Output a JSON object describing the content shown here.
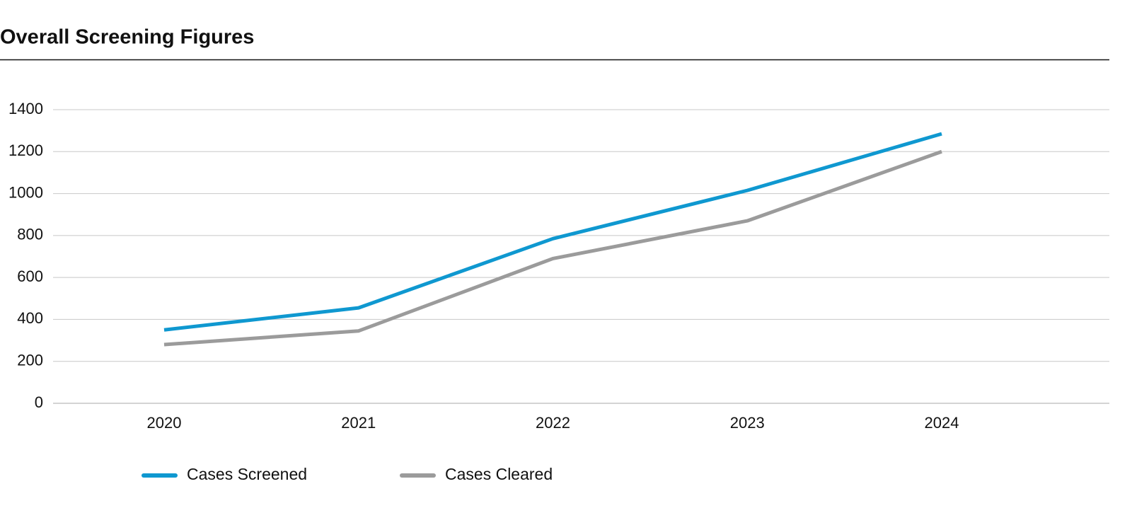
{
  "chart_data": {
    "type": "line",
    "title": "Overall Screening Figures",
    "categories": [
      "2020",
      "2021",
      "2022",
      "2023",
      "2024"
    ],
    "series": [
      {
        "name": "Cases Screened",
        "color": "#0f98d0",
        "values": [
          350,
          455,
          785,
          1015,
          1285
        ]
      },
      {
        "name": "Cases Cleared",
        "color": "#9b9b9b",
        "values": [
          280,
          345,
          690,
          870,
          1200
        ]
      }
    ],
    "ylim": [
      0,
      1400
    ],
    "yticks": [
      0,
      200,
      400,
      600,
      800,
      1000,
      1200,
      1400
    ],
    "grid": true
  }
}
